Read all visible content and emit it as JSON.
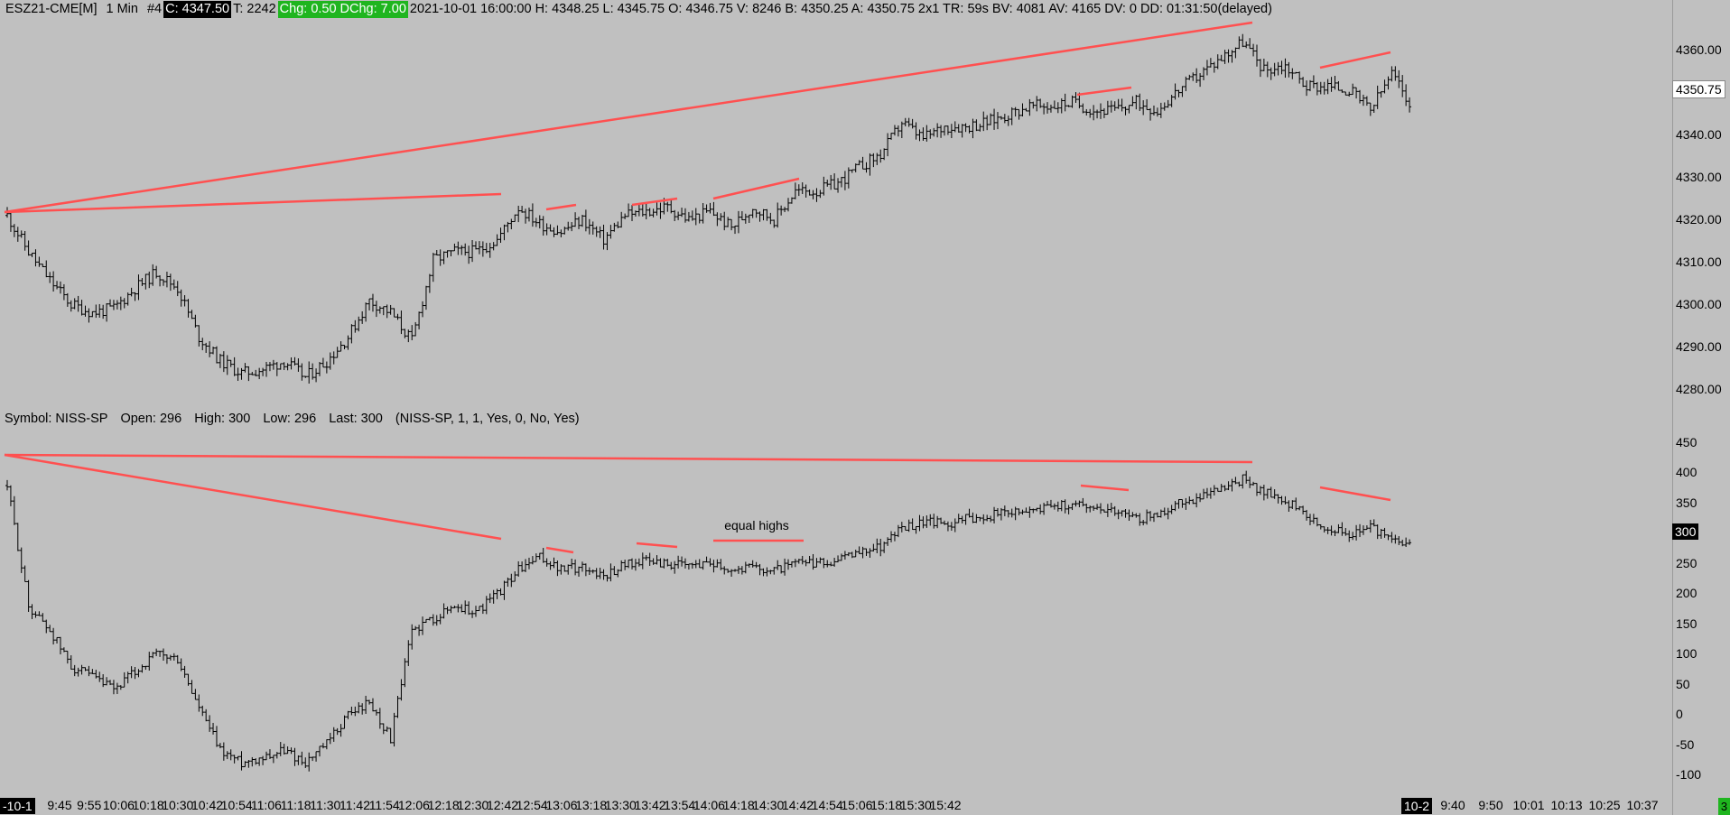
{
  "header": {
    "symbol": "ESZ21-CME[M]",
    "interval": "1 Min",
    "chart_number": "#4",
    "close": "C: 4347.50",
    "trades": "T: 2242",
    "change": "Chg: 0.50",
    "day_change": "DChg: 7.00",
    "details": "2021-10-01 16:00:00 H: 4348.25 L: 4345.75 O: 4346.75 V: 8246 B: 4350.25 A: 4350.75 2x1 TR: 59s BV: 4081 AV: 4165 DV: 0 DD: 01:31:50(delayed)"
  },
  "study_header": {
    "symbol": "Symbol: NISS-SP",
    "open": "Open: 296",
    "high": "High: 300",
    "low": "Low: 296",
    "last": "Last: 300",
    "params": "(NISS-SP, 1, 1, Yes, 0, No, Yes)"
  },
  "price_axis": {
    "ticks": [
      "4360.00",
      "4350.00",
      "4340.00",
      "4330.00",
      "4320.00",
      "4310.00",
      "4300.00",
      "4290.00",
      "4280.00"
    ],
    "current_price": "4350.75"
  },
  "study_axis": {
    "ticks": [
      "450",
      "400",
      "350",
      "300",
      "250",
      "200",
      "150",
      "100",
      "50",
      "0",
      "-50",
      "-100"
    ],
    "current_value": "300"
  },
  "time_axis": {
    "start_tag": "-10-1",
    "labels": [
      "9:45",
      "9:55",
      "10:06",
      "10:18",
      "10:30",
      "10:42",
      "10:54",
      "11:06",
      "11:18",
      "11:30",
      "11:42",
      "11:54",
      "12:06",
      "12:18",
      "12:30",
      "12:42",
      "12:54",
      "13:06",
      "13:18",
      "13:30",
      "13:42",
      "13:54",
      "14:06",
      "14:18",
      "14:30",
      "14:42",
      "14:54",
      "15:06",
      "15:18",
      "15:30",
      "15:42"
    ],
    "next_day_tag": "10-2",
    "future_labels": [
      "9:40",
      "9:50",
      "10:01",
      "10:13",
      "10:25",
      "10:37"
    ],
    "corner_value": "3"
  },
  "annotation": {
    "equal_highs": "equal highs"
  },
  "colors": {
    "background": "#c0c0c0",
    "price_bars": "#000000",
    "trendlines": "#ff5050",
    "highlight_green": "#1fb51f"
  },
  "chart_data": [
    {
      "type": "ohlc",
      "name": "ESZ21-CME[M] 1 Min",
      "ylim": [
        4275,
        4368
      ],
      "x": [
        "9:31",
        "9:36",
        "9:41",
        "9:45",
        "9:50",
        "9:55",
        "10:00",
        "10:06",
        "10:12",
        "10:18",
        "10:24",
        "10:30",
        "10:36",
        "10:42",
        "10:48",
        "10:54",
        "11:00",
        "11:06",
        "11:12",
        "11:18",
        "11:24",
        "11:30",
        "11:36",
        "11:42",
        "11:48",
        "11:54",
        "12:00",
        "12:06",
        "12:12",
        "12:18",
        "12:24",
        "12:30",
        "12:36",
        "12:42",
        "12:48",
        "12:54",
        "13:00",
        "13:06",
        "13:12",
        "13:18",
        "13:24",
        "13:30",
        "13:36",
        "13:42",
        "13:48",
        "13:54",
        "14:00",
        "14:06",
        "14:12",
        "14:18",
        "14:24",
        "14:30",
        "14:36",
        "14:42",
        "14:48",
        "14:54",
        "15:00",
        "15:06",
        "15:12",
        "15:18",
        "15:24",
        "15:30",
        "15:36",
        "15:42",
        "15:48",
        "15:54",
        "16:00"
      ],
      "close": [
        4321,
        4312,
        4305,
        4299,
        4297,
        4298,
        4303,
        4307,
        4303,
        4291,
        4285,
        4282,
        4283,
        4285,
        4281,
        4285,
        4291,
        4300,
        4297,
        4290,
        4310,
        4312,
        4312,
        4315,
        4323,
        4319,
        4317,
        4320,
        4315,
        4321,
        4322,
        4323,
        4320,
        4322,
        4318,
        4323,
        4320,
        4327,
        4327,
        4329,
        4333,
        4336,
        4344,
        4340,
        4343,
        4343,
        4344,
        4346,
        4348,
        4348,
        4349,
        4347,
        4347,
        4349,
        4347,
        4352,
        4356,
        4360,
        4364,
        4357,
        4358,
        4353,
        4353,
        4352,
        4347,
        4356,
        4347.5
      ]
    },
    {
      "type": "ohlc",
      "name": "NISS-SP",
      "ylim": [
        -110,
        460
      ],
      "x": [
        "9:31",
        "9:36",
        "9:41",
        "9:45",
        "9:50",
        "9:55",
        "10:00",
        "10:06",
        "10:12",
        "10:18",
        "10:24",
        "10:30",
        "10:36",
        "10:42",
        "10:48",
        "10:54",
        "11:00",
        "11:06",
        "11:12",
        "11:18",
        "11:24",
        "11:30",
        "11:36",
        "11:42",
        "11:48",
        "11:54",
        "12:00",
        "12:06",
        "12:12",
        "12:18",
        "12:24",
        "12:30",
        "12:36",
        "12:42",
        "12:48",
        "12:54",
        "13:00",
        "13:06",
        "13:12",
        "13:18",
        "13:24",
        "13:30",
        "13:36",
        "13:42",
        "13:48",
        "13:54",
        "14:00",
        "14:06",
        "14:12",
        "14:18",
        "14:24",
        "14:30",
        "14:36",
        "14:42",
        "14:48",
        "14:54",
        "15:00",
        "15:06",
        "15:12",
        "15:18",
        "15:24",
        "15:30",
        "15:36",
        "15:42",
        "15:48",
        "15:54",
        "16:00"
      ],
      "close": [
        400,
        200,
        160,
        100,
        80,
        60,
        90,
        120,
        110,
        30,
        -40,
        -60,
        -50,
        -40,
        -60,
        -30,
        20,
        40,
        -20,
        160,
        180,
        200,
        190,
        220,
        260,
        280,
        260,
        265,
        250,
        270,
        275,
        270,
        265,
        275,
        260,
        265,
        260,
        270,
        270,
        275,
        290,
        300,
        330,
        340,
        335,
        345,
        350,
        355,
        360,
        365,
        370,
        365,
        360,
        345,
        350,
        370,
        380,
        395,
        410,
        390,
        375,
        350,
        330,
        320,
        330,
        310,
        300
      ]
    }
  ]
}
